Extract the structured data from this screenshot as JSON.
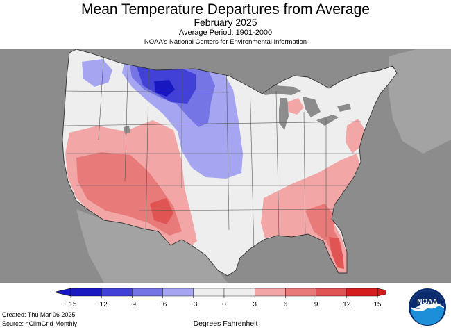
{
  "header": {
    "title": "Mean Temperature Departures from Average",
    "subtitle": "February 2025",
    "average_period": "Average Period: 1901-2000",
    "organization": "NOAA's National Centers for Environmental Information"
  },
  "legend": {
    "tick_labels": [
      "−15",
      "−12",
      "−9",
      "−6",
      "−3",
      "0",
      "3",
      "6",
      "9",
      "12",
      "15"
    ],
    "values": [
      -15,
      -12,
      -9,
      -6,
      -3,
      0,
      3,
      6,
      9,
      12,
      15
    ],
    "colors": [
      "#1818c0",
      "#4141d8",
      "#7575e6",
      "#a5a5f2",
      "#eeeeee",
      "#eeeeee",
      "#f2a6a6",
      "#e87a7a",
      "#e05454",
      "#d41c1c"
    ],
    "units": "Degrees Fahrenheit"
  },
  "footer": {
    "created": "Created: Thu Mar 06 2025",
    "source": "Source: nClimGrid-Monthly"
  },
  "logo": {
    "text": "NOAA",
    "colors": {
      "dark": "#0b2b6f",
      "light": "#1d8fd8",
      "bird": "#ffffff"
    }
  },
  "map": {
    "background_color": "#8c8c8c",
    "neutral_color": "#eeeeee",
    "lakes_color": "#8c8c8c"
  }
}
